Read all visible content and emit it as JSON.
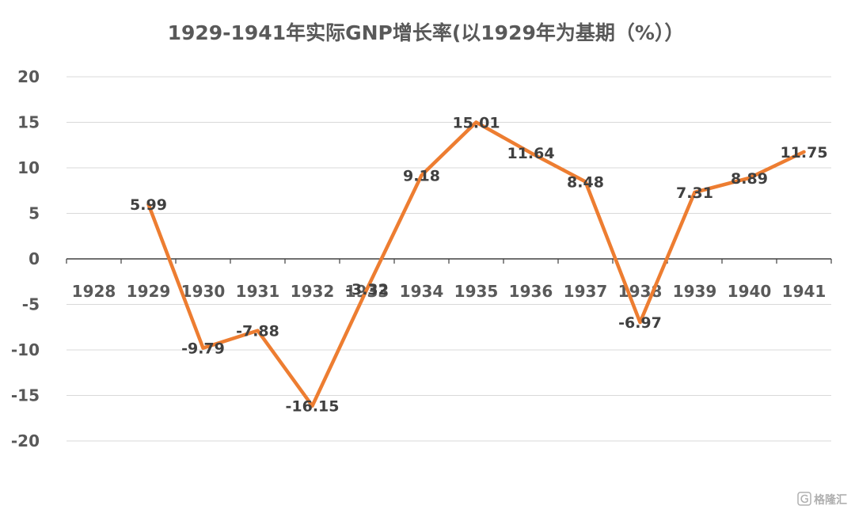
{
  "chart_data": {
    "type": "line",
    "title": "1929-1941年实际GNP增长率(以1929年为基期（%））",
    "categories": [
      "1928",
      "1929",
      "1930",
      "1931",
      "1932",
      "1933",
      "1934",
      "1935",
      "1936",
      "1937",
      "1938",
      "1939",
      "1940",
      "1941"
    ],
    "series": [
      {
        "values": [
          null,
          5.99,
          -9.79,
          -7.88,
          -16.15,
          -3.32,
          9.18,
          15.01,
          11.64,
          8.48,
          -6.97,
          7.31,
          8.89,
          11.75
        ],
        "labels": [
          "",
          "5.99",
          "-9.79",
          "-7.88",
          "-16.15",
          "-3.32",
          "9.18",
          "15.01",
          "11.64",
          "8.48",
          "-6.97",
          "7.31",
          "8.89",
          "11.75"
        ],
        "color": "#ED7D31"
      }
    ],
    "yticks": [
      "20",
      "15",
      "10",
      "5",
      "0",
      "-5",
      "-10",
      "-15",
      "-20"
    ],
    "ylim": [
      -20,
      20
    ],
    "grid": true,
    "legend": "none"
  },
  "watermark": {
    "icon": "brand-logo-icon",
    "text": "格隆汇"
  }
}
